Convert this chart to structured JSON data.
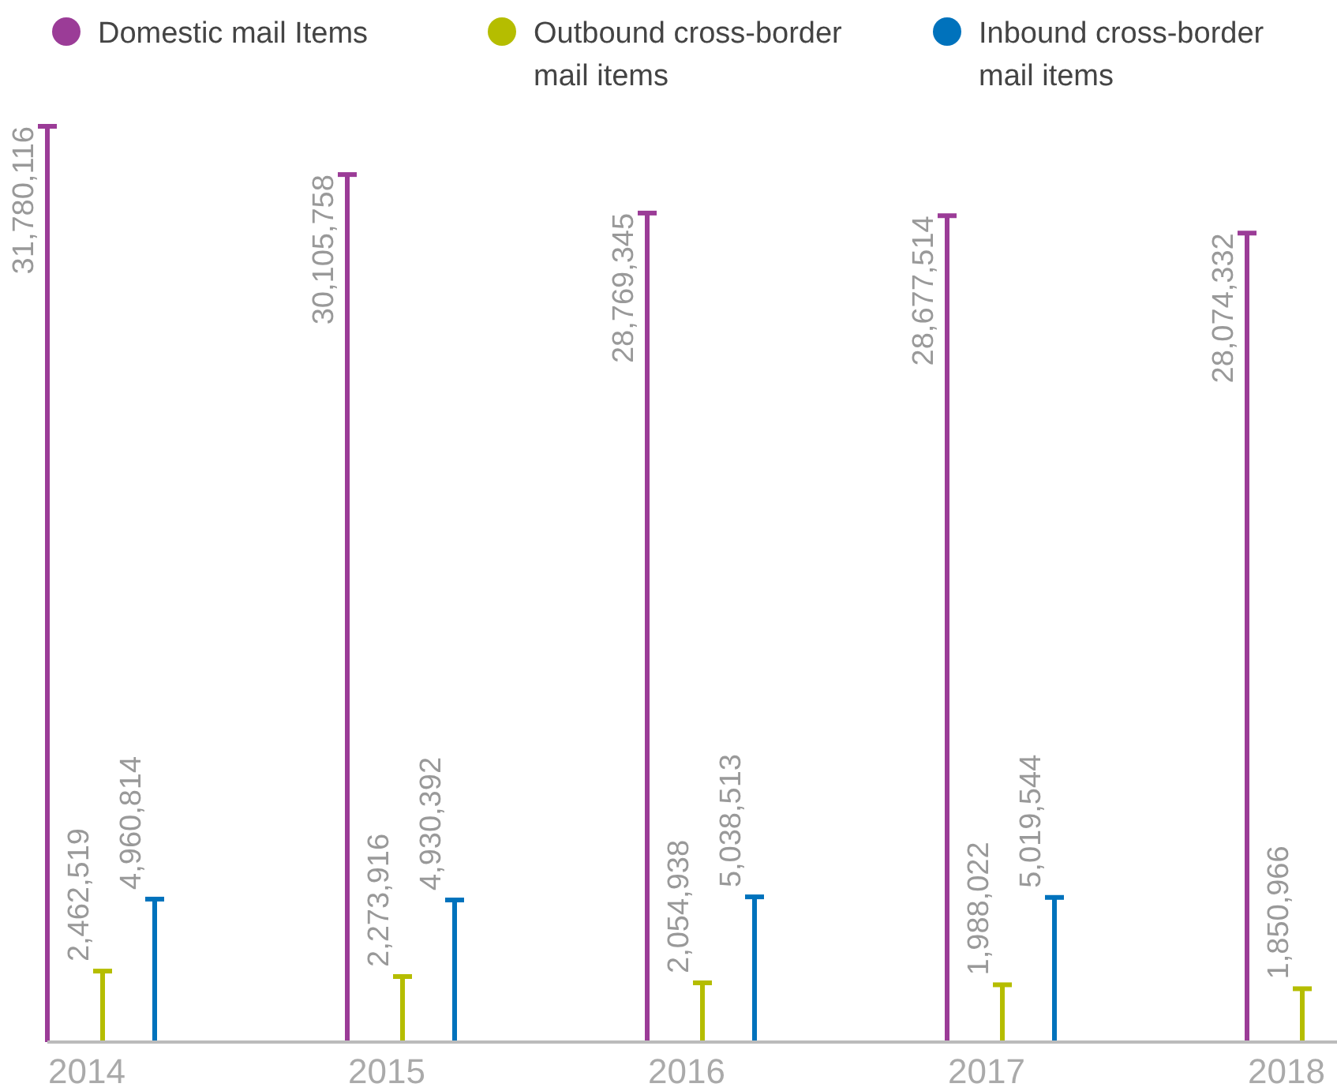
{
  "chart_data": {
    "type": "bar",
    "categories": [
      "2014",
      "2015",
      "2016",
      "2017",
      "2018"
    ],
    "series": [
      {
        "name": "Domestic mail Items",
        "color": "#9b3c97",
        "values": [
          31780116,
          30105758,
          28769345,
          28677514,
          28074332
        ],
        "value_labels": [
          "31,780,116",
          "30,105,758",
          "28,769,345",
          "28,677,514",
          "28,074,332"
        ]
      },
      {
        "name": "Outbound cross-border mail items",
        "color": "#b5bd00",
        "values": [
          2462519,
          2273916,
          2054938,
          1988022,
          1850966
        ],
        "value_labels": [
          "2,462,519",
          "2,273,916",
          "2,054,938",
          "1,988,022",
          "1,850,966"
        ]
      },
      {
        "name": "Inbound cross-border mail items",
        "color": "#0072bc",
        "values": [
          4960814,
          4930392,
          5038513,
          5019544,
          null
        ],
        "value_labels": [
          "4,960,814",
          "4,930,392",
          "5,038,513",
          "5,019,544",
          null
        ]
      }
    ],
    "legend": "top"
  }
}
